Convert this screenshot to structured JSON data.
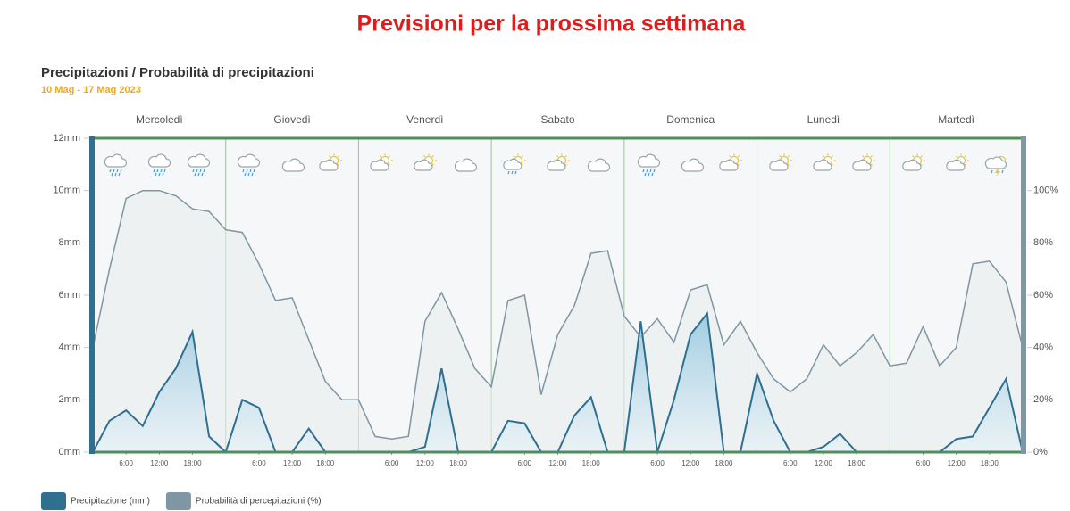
{
  "header": {
    "title": "Previsioni per la prossima settimana"
  },
  "chart_data": {
    "type": "line",
    "title": "Precipitazioni / Probabilità di precipitazioni",
    "subtitle": "10 Mag - 17 Mag 2023",
    "day_labels": [
      "Mercoledì",
      "Giovedì",
      "Venerdì",
      "Sabato",
      "Domenica",
      "Lunedì",
      "Martedì"
    ],
    "x": [
      0,
      3,
      6,
      9,
      12,
      15,
      18,
      21,
      24,
      27,
      30,
      33,
      36,
      39,
      42,
      45,
      48,
      51,
      54,
      57,
      60,
      63,
      66,
      69,
      72,
      75,
      78,
      81,
      84,
      87,
      90,
      93,
      96,
      99,
      102,
      105,
      108,
      111,
      114,
      117,
      120,
      123,
      126,
      129,
      132,
      135,
      138,
      141,
      144,
      147,
      150,
      153,
      156,
      159,
      162,
      165,
      168
    ],
    "xlim": [
      0,
      168
    ],
    "xticks": [
      {
        "value": 6,
        "label": "6:00"
      },
      {
        "value": 12,
        "label": "12:00"
      },
      {
        "value": 18,
        "label": "18:00"
      },
      {
        "value": 30,
        "label": "6:00"
      },
      {
        "value": 36,
        "label": "12:00"
      },
      {
        "value": 42,
        "label": "18:00"
      },
      {
        "value": 54,
        "label": "6:00"
      },
      {
        "value": 60,
        "label": "12:00"
      },
      {
        "value": 66,
        "label": "18:00"
      },
      {
        "value": 78,
        "label": "6:00"
      },
      {
        "value": 84,
        "label": "12:00"
      },
      {
        "value": 90,
        "label": "18:00"
      },
      {
        "value": 102,
        "label": "6:00"
      },
      {
        "value": 108,
        "label": "12:00"
      },
      {
        "value": 114,
        "label": "18:00"
      },
      {
        "value": 126,
        "label": "6:00"
      },
      {
        "value": 132,
        "label": "12:00"
      },
      {
        "value": 138,
        "label": "18:00"
      },
      {
        "value": 150,
        "label": "6:00"
      },
      {
        "value": 156,
        "label": "12:00"
      },
      {
        "value": 162,
        "label": "18:00"
      }
    ],
    "ylim": [
      0,
      12
    ],
    "yticks": [
      {
        "value": 0,
        "label": "0mm"
      },
      {
        "value": 2,
        "label": "2mm"
      },
      {
        "value": 4,
        "label": "4mm"
      },
      {
        "value": 6,
        "label": "6mm"
      },
      {
        "value": 8,
        "label": "8mm"
      },
      {
        "value": 10,
        "label": "10mm"
      },
      {
        "value": 12,
        "label": "12mm"
      }
    ],
    "y2lim": [
      0,
      120
    ],
    "y2ticks": [
      {
        "value": 0,
        "label": "0%"
      },
      {
        "value": 20,
        "label": "20%"
      },
      {
        "value": 40,
        "label": "40%"
      },
      {
        "value": 60,
        "label": "60%"
      },
      {
        "value": 80,
        "label": "80%"
      },
      {
        "value": 100,
        "label": "100%"
      }
    ],
    "series": [
      {
        "name": "Probabilità di percepitazioni (%)",
        "color": "#7f96a3",
        "axis": "y2",
        "values": [
          40,
          70,
          97,
          100,
          100,
          98,
          93,
          92,
          85,
          84,
          72,
          58,
          59,
          43,
          27,
          20,
          20,
          6,
          5,
          6,
          50,
          61,
          47,
          32,
          25,
          58,
          60,
          22,
          45,
          56,
          76,
          77,
          52,
          44,
          51,
          42,
          62,
          64,
          41,
          50,
          38,
          28,
          23,
          28,
          41,
          33,
          38,
          45,
          33,
          34,
          48,
          33,
          40,
          72,
          73,
          65,
          40
        ]
      },
      {
        "name": "Precipitazione (mm)",
        "color": "#2f6f8f",
        "values": [
          0,
          1.2,
          1.6,
          1.0,
          2.3,
          3.2,
          4.6,
          0.6,
          0,
          2.0,
          1.7,
          0,
          0,
          0.9,
          0,
          0,
          0,
          0,
          0,
          0,
          0.2,
          3.2,
          0,
          0,
          0,
          1.2,
          1.1,
          0,
          0,
          1.4,
          2.1,
          0,
          0,
          5.0,
          0,
          2.0,
          4.5,
          5.3,
          0,
          0,
          3.0,
          1.2,
          0,
          0,
          0.2,
          0.7,
          0,
          0,
          0,
          0,
          0,
          0,
          0.5,
          0.6,
          1.7,
          2.8,
          0
        ]
      }
    ]
  }
}
